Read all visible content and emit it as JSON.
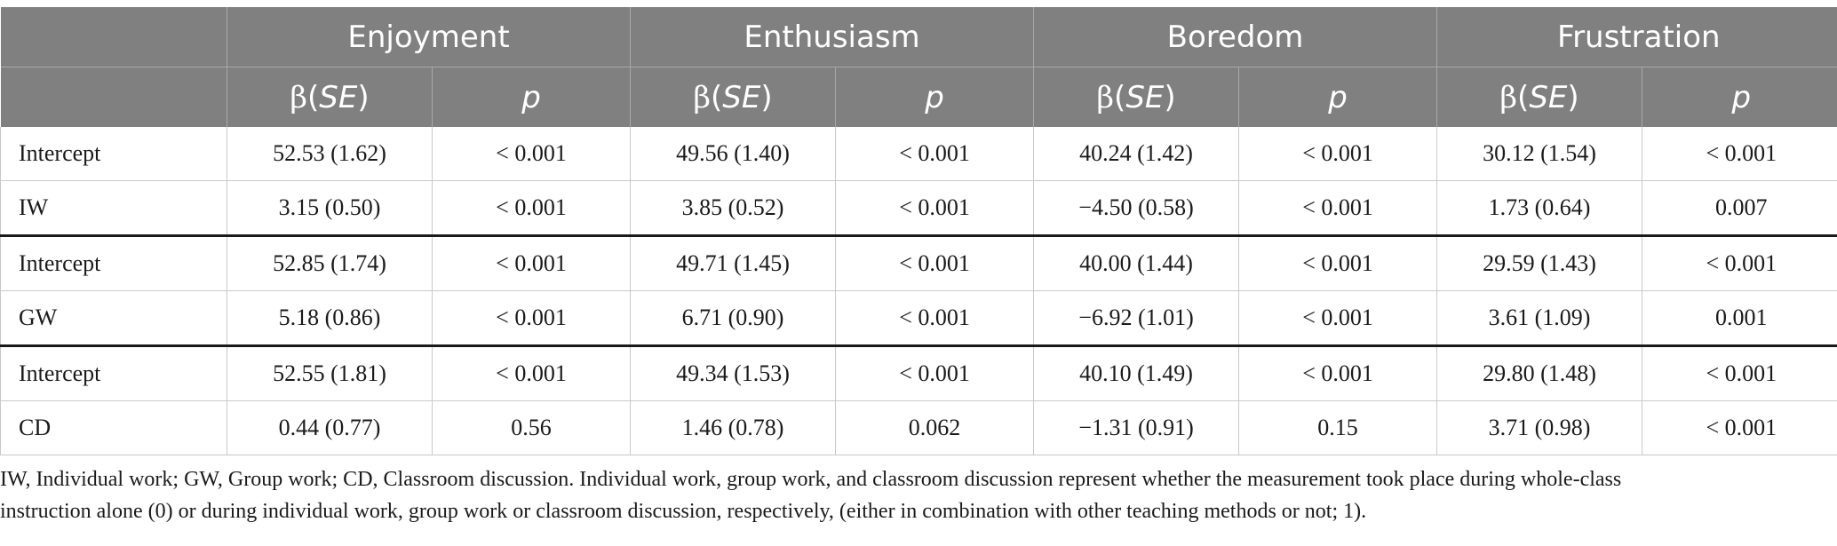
{
  "table": {
    "groups": [
      "Enjoyment",
      "Enthusiasm",
      "Boredom",
      "Frustration"
    ],
    "sub_headers": {
      "beta": "β",
      "se": "SE",
      "p": "p"
    },
    "rows": [
      {
        "label": "Intercept",
        "cells": [
          "52.53 (1.62)",
          "< 0.001",
          "49.56 (1.40)",
          "< 0.001",
          "40.24 (1.42)",
          "< 0.001",
          "30.12 (1.54)",
          "< 0.001"
        ]
      },
      {
        "label": "IW",
        "cells": [
          "3.15 (0.50)",
          "< 0.001",
          "3.85 (0.52)",
          "< 0.001",
          "−4.50 (0.58)",
          "< 0.001",
          "1.73 (0.64)",
          "0.007"
        ]
      },
      {
        "label": "Intercept",
        "cells": [
          "52.85 (1.74)",
          "< 0.001",
          "49.71 (1.45)",
          "< 0.001",
          "40.00 (1.44)",
          "< 0.001",
          "29.59 (1.43)",
          "< 0.001"
        ]
      },
      {
        "label": "GW",
        "cells": [
          "5.18 (0.86)",
          "< 0.001",
          "6.71 (0.90)",
          "< 0.001",
          "−6.92 (1.01)",
          "< 0.001",
          "3.61 (1.09)",
          "0.001"
        ]
      },
      {
        "label": "Intercept",
        "cells": [
          "52.55 (1.81)",
          "< 0.001",
          "49.34 (1.53)",
          "< 0.001",
          "40.10 (1.49)",
          "< 0.001",
          "29.80 (1.48)",
          "< 0.001"
        ]
      },
      {
        "label": "CD",
        "cells": [
          "0.44 (0.77)",
          "0.56",
          "1.46 (0.78)",
          "0.062",
          "−1.31 (0.91)",
          "0.15",
          "3.71 (0.98)",
          "< 0.001"
        ]
      }
    ]
  },
  "footnote": {
    "line1": "IW, Individual work; GW, Group work; CD, Classroom discussion. Individual work, group work, and classroom discussion represent whether the measurement took place during whole-class",
    "line2": "instruction alone (0) or during individual work, group work or classroom discussion, respectively, (either in combination with other teaching methods or not; 1)."
  },
  "colors": {
    "header_bg": "#808080",
    "header_text": "#ffffff",
    "body_text": "#1a1a1a",
    "rule": "#1a1a1a"
  }
}
